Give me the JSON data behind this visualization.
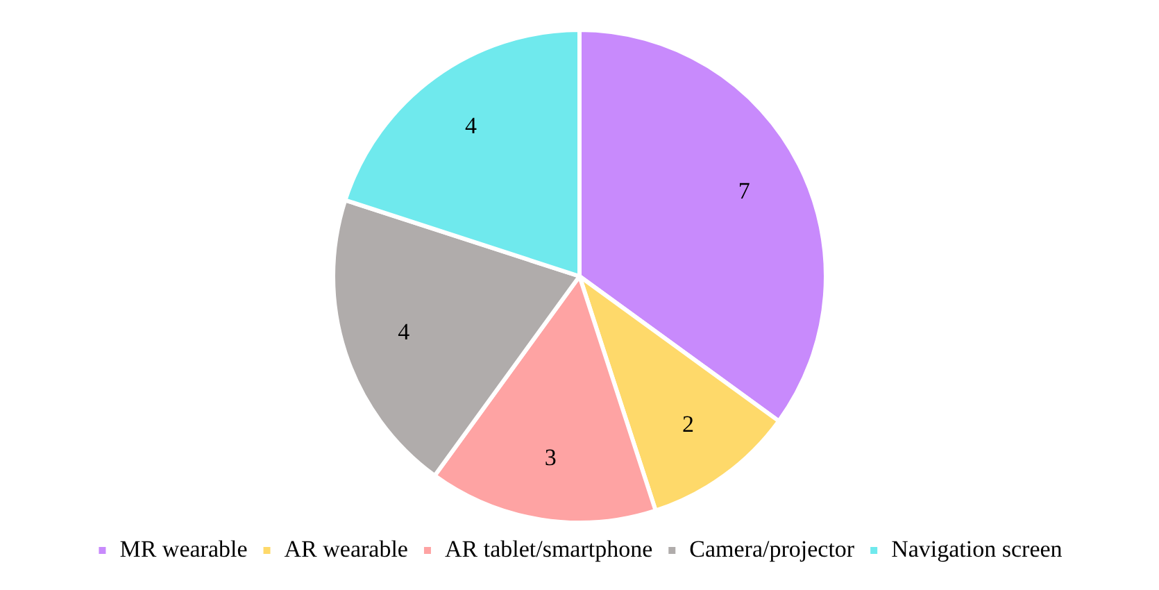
{
  "chart_data": {
    "type": "pie",
    "categories": [
      "MR wearable",
      "AR wearable",
      "AR tablet/smartphone",
      "Camera/projector",
      "Navigation screen"
    ],
    "values": [
      7,
      2,
      3,
      4,
      4
    ],
    "colors": [
      "#c88afc",
      "#fed96a",
      "#fea3a3",
      "#b0acab",
      "#6fe9ed"
    ],
    "data_labels": true,
    "legend": "bottom"
  }
}
